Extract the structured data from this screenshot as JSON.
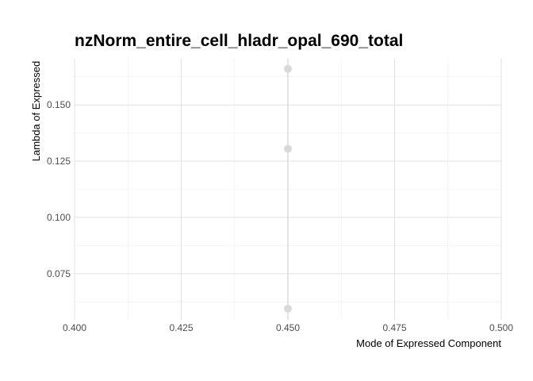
{
  "chart_data": {
    "type": "scatter",
    "title": "nzNorm_entire_cell_hladr_opal_690_total",
    "xlabel": "Mode of Expressed Component",
    "ylabel": "Lambda of Expressed",
    "xlim": [
      0.4,
      0.5
    ],
    "ylim": [
      0.0545,
      0.1705
    ],
    "x_ticks": [
      "0.400",
      "0.425",
      "0.450",
      "0.475",
      "0.500"
    ],
    "y_ticks": [
      "0.075",
      "0.100",
      "0.125",
      "0.150"
    ],
    "grid": true,
    "points": [
      {
        "x": 0.45,
        "y": 0.166
      },
      {
        "x": 0.45,
        "y": 0.1305
      },
      {
        "x": 0.45,
        "y": 0.0595
      }
    ],
    "point_color": "#d9d9d9",
    "line": {
      "x": 0.45,
      "color": "#d9d9d9"
    }
  }
}
